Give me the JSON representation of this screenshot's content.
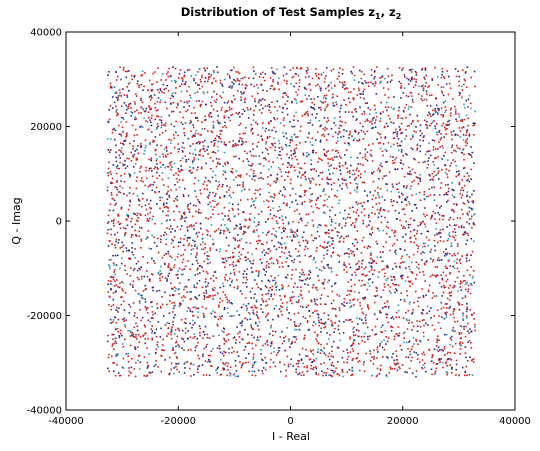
{
  "chart_data": {
    "type": "scatter",
    "title": "Distribution of Test Samples z",
    "title_sub1": "1",
    "title_sep": ", z",
    "title_sub2": "2",
    "xlabel": "I - Real",
    "ylabel": "Q - Imag",
    "xlim": [
      -40000,
      40000
    ],
    "ylim": [
      -40000,
      40000
    ],
    "xticks": [
      -40000,
      -20000,
      0,
      20000,
      40000
    ],
    "yticks": [
      -40000,
      -20000,
      0,
      20000,
      40000
    ],
    "xtick_labels": [
      "-40000",
      "-20000",
      "0",
      "20000",
      "40000"
    ],
    "ytick_labels": [
      "-40000",
      "-20000",
      "0",
      "20000",
      "40000"
    ],
    "grid": false,
    "sample_region": {
      "x": [
        -32768,
        32767
      ],
      "y": [
        -32768,
        32767
      ]
    },
    "series": [
      {
        "color": "#d62020",
        "approx_points": 3200
      },
      {
        "color": "#2a2a8a",
        "approx_points": 1500
      },
      {
        "color": "#2aa0b8",
        "approx_points": 600
      }
    ]
  }
}
